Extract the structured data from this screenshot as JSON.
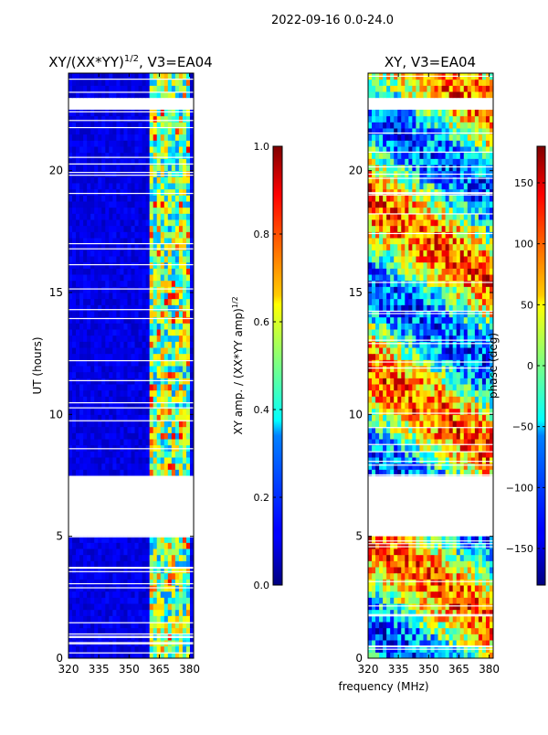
{
  "figure": {
    "suptitle": "2022-09-16 0.0-24.0",
    "xlabel_shared": "frequency (MHz)"
  },
  "chart_data": [
    {
      "type": "heatmap",
      "title": "XY/(XX*YY)$^{1/2}$, V3=EA04",
      "title_display": "XY/(XX*YY)",
      "title_sup": "1/2",
      "title_tail": ", V3=EA04",
      "xlabel": "",
      "ylabel": "UT (hours)",
      "xlim": [
        320,
        382
      ],
      "ylim": [
        0,
        24
      ],
      "xticks": [
        320,
        335,
        350,
        365,
        380
      ],
      "yticks": [
        0,
        5,
        10,
        15,
        20
      ],
      "signal_band_mhz": [
        360,
        380
      ],
      "gaps_ut": [
        [
          5.0,
          7.4
        ],
        [
          22.6,
          22.9
        ]
      ],
      "colorbar": {
        "label": "XY amp. / (XX*YY amp)$^{1/2}$",
        "label_display": "XY amp. / (XX*YY amp)",
        "label_sup": "1/2",
        "range": [
          0.0,
          1.0
        ],
        "ticks": [
          "0.0",
          "0.2",
          "0.4",
          "0.6",
          "0.8",
          "1.0"
        ],
        "colormap": "jet"
      }
    },
    {
      "type": "heatmap",
      "title": "XY, V3=EA04",
      "xlabel": "frequency (MHz)",
      "ylabel": "",
      "xlim": [
        320,
        382
      ],
      "ylim": [
        0,
        24
      ],
      "xticks": [
        320,
        335,
        350,
        365,
        380
      ],
      "yticks": [
        0,
        5,
        10,
        15,
        20
      ],
      "gaps_ut": [
        [
          5.0,
          7.4
        ],
        [
          22.6,
          22.9
        ]
      ],
      "colorbar": {
        "label": "phase (deg)",
        "range": [
          -180,
          180
        ],
        "ticks": [
          "-150",
          "-100",
          "-50",
          "0",
          "50",
          "100",
          "150"
        ],
        "colormap": "jet"
      }
    }
  ],
  "colors": {
    "jet_low": "#00007f",
    "jet_mid": "#7fff7f",
    "jet_high": "#7f0000"
  }
}
